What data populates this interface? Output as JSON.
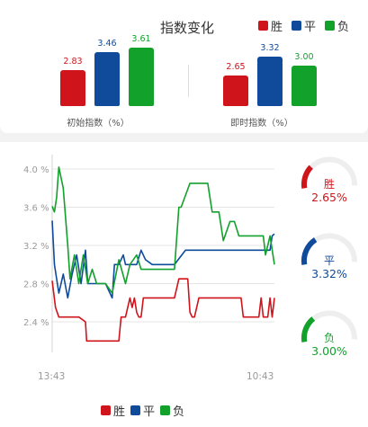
{
  "header": {
    "title": "指数变化"
  },
  "legend": [
    {
      "label": "胜",
      "color": "#d0141b"
    },
    {
      "label": "平",
      "color": "#0f4a9b"
    },
    {
      "label": "负",
      "color": "#12a12b"
    }
  ],
  "bar_groups": [
    {
      "label": "初始指数（%）",
      "values": [
        2.83,
        3.46,
        3.61
      ],
      "value_labels": [
        "2.83",
        "3.46",
        "3.61"
      ]
    },
    {
      "label": "即时指数（%）",
      "values": [
        2.65,
        3.32,
        3.0
      ],
      "value_labels": [
        "2.65",
        "3.32",
        "3.00"
      ]
    }
  ],
  "gauges": [
    {
      "label": "胜",
      "value_text": "2.65%",
      "value": 2.65,
      "color": "#d0141b"
    },
    {
      "label": "平",
      "value_text": "3.32%",
      "value": 3.32,
      "color": "#0f4a9b"
    },
    {
      "label": "负",
      "value_text": "3.00%",
      "value": 3.0,
      "color": "#12a12b"
    }
  ],
  "chart_data": {
    "type": "line",
    "y_ticks": [
      "4.0 %",
      "3.6 %",
      "3.2 %",
      "2.8 %",
      "2.4 %"
    ],
    "y_tick_values": [
      4.0,
      3.6,
      3.2,
      2.8,
      2.4
    ],
    "ylim": [
      2.1,
      4.1
    ],
    "x_labels": [
      "13:43",
      "10:43"
    ],
    "grid": true,
    "series": [
      {
        "name": "胜",
        "color": "#d0141b",
        "x": [
          0,
          0.015,
          0.03,
          0.06,
          0.12,
          0.15,
          0.155,
          0.3,
          0.31,
          0.33,
          0.35,
          0.36,
          0.37,
          0.38,
          0.39,
          0.4,
          0.41,
          0.45,
          0.5,
          0.55,
          0.57,
          0.58,
          0.6,
          0.61,
          0.62,
          0.63,
          0.64,
          0.65,
          0.66,
          0.67,
          0.7,
          0.75,
          0.8,
          0.85,
          0.86,
          0.87,
          0.88,
          0.89,
          0.9,
          0.92,
          0.93,
          0.94,
          0.95,
          0.96,
          0.97,
          0.98,
          0.99,
          1.0
        ],
        "y": [
          2.83,
          2.55,
          2.45,
          2.45,
          2.45,
          2.4,
          2.2,
          2.2,
          2.45,
          2.45,
          2.65,
          2.55,
          2.65,
          2.5,
          2.45,
          2.45,
          2.65,
          2.65,
          2.65,
          2.65,
          2.85,
          2.85,
          2.85,
          2.85,
          2.5,
          2.45,
          2.45,
          2.55,
          2.65,
          2.65,
          2.65,
          2.65,
          2.65,
          2.65,
          2.45,
          2.45,
          2.45,
          2.45,
          2.45,
          2.45,
          2.45,
          2.65,
          2.45,
          2.45,
          2.45,
          2.65,
          2.45,
          2.65
        ]
      },
      {
        "name": "平",
        "color": "#0f4a9b",
        "x": [
          0,
          0.01,
          0.03,
          0.05,
          0.07,
          0.09,
          0.11,
          0.13,
          0.15,
          0.16,
          0.2,
          0.24,
          0.27,
          0.28,
          0.3,
          0.32,
          0.33,
          0.35,
          0.38,
          0.4,
          0.42,
          0.45,
          0.5,
          0.55,
          0.6,
          0.62,
          0.64,
          0.7,
          0.8,
          0.9,
          0.95,
          0.97,
          0.98,
          0.99,
          1.0
        ],
        "y": [
          3.46,
          3.0,
          2.7,
          2.9,
          2.65,
          2.9,
          3.1,
          2.8,
          3.15,
          2.8,
          2.8,
          2.8,
          2.65,
          3.0,
          3.0,
          3.1,
          3.0,
          3.0,
          3.0,
          3.15,
          3.05,
          3.0,
          3.0,
          3.0,
          3.15,
          3.15,
          3.15,
          3.15,
          3.15,
          3.15,
          3.15,
          3.15,
          3.15,
          3.3,
          3.32
        ]
      },
      {
        "name": "负",
        "color": "#12a12b",
        "x": [
          0,
          0.01,
          0.02,
          0.03,
          0.05,
          0.07,
          0.08,
          0.1,
          0.12,
          0.14,
          0.16,
          0.18,
          0.2,
          0.24,
          0.27,
          0.3,
          0.33,
          0.35,
          0.38,
          0.4,
          0.42,
          0.5,
          0.55,
          0.57,
          0.58,
          0.62,
          0.64,
          0.68,
          0.7,
          0.72,
          0.75,
          0.77,
          0.8,
          0.82,
          0.84,
          0.86,
          0.9,
          0.93,
          0.95,
          0.96,
          0.98,
          1.0
        ],
        "y": [
          3.61,
          3.55,
          3.7,
          4.02,
          3.8,
          3.2,
          2.85,
          3.1,
          2.8,
          3.1,
          2.8,
          2.95,
          2.8,
          2.8,
          2.7,
          3.05,
          2.8,
          3.0,
          3.1,
          2.95,
          2.95,
          2.95,
          2.95,
          3.6,
          3.6,
          3.85,
          3.85,
          3.85,
          3.85,
          3.55,
          3.55,
          3.25,
          3.45,
          3.45,
          3.3,
          3.3,
          3.3,
          3.3,
          3.3,
          3.1,
          3.3,
          3.0
        ]
      }
    ]
  }
}
